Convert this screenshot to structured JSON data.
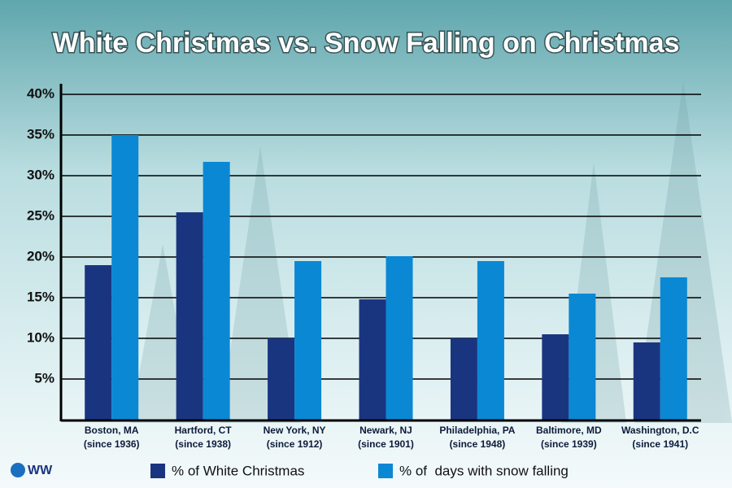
{
  "logo": "WW",
  "chart_data": {
    "type": "bar",
    "title": "White Christmas  vs. Snow Falling on Christmas",
    "categories": [
      [
        "Boston, MA",
        "(since 1936)"
      ],
      [
        "Hartford, CT",
        "(since 1938)"
      ],
      [
        "New York, NY",
        "(since 1912)"
      ],
      [
        "Newark, NJ",
        "(since 1901)"
      ],
      [
        "Philadelphia, PA",
        "(since 1948)"
      ],
      [
        "Baltimore, MD",
        "(since 1939)"
      ],
      [
        "Washington, D.C",
        "(since 1941)"
      ]
    ],
    "series": [
      {
        "name": "% of White Christmas",
        "color": "#1a3580",
        "values": [
          19,
          25.5,
          10,
          14.8,
          10,
          10.5,
          9.5
        ]
      },
      {
        "name": "% of  days with snow falling",
        "color": "#0a88d4",
        "values": [
          35,
          31.7,
          19.5,
          20.1,
          19.5,
          15.5,
          17.5
        ]
      }
    ],
    "ylim": [
      0,
      40
    ],
    "yticks": [
      {
        "value": 5,
        "label": "5%"
      },
      {
        "value": 10,
        "label": "10%"
      },
      {
        "value": 15,
        "label": "15%"
      },
      {
        "value": 20,
        "label": "20%"
      },
      {
        "value": 25,
        "label": "25%"
      },
      {
        "value": 30,
        "label": "30%"
      },
      {
        "value": 35,
        "label": "35%"
      },
      {
        "value": 40,
        "label": "40%"
      }
    ],
    "grid": true,
    "legend": "bottom"
  }
}
